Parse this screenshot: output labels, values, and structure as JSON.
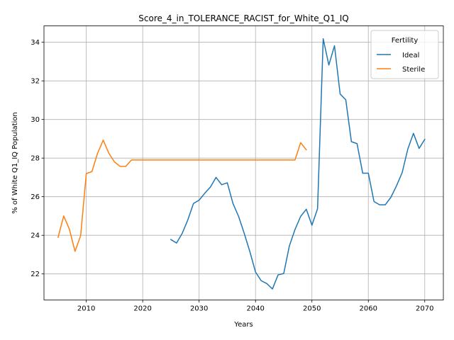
{
  "chart_data": {
    "type": "line",
    "title": "Score_4_in_TOLERANCE_RACIST_for_White_Q1_IQ",
    "xlabel": "Years",
    "ylabel": "% of White Q1_IQ Population",
    "xlim": [
      2002.5,
      2073.3
    ],
    "ylim": [
      20.65,
      34.85
    ],
    "xticks": [
      2010,
      2020,
      2030,
      2040,
      2050,
      2060,
      2070
    ],
    "yticks": [
      22,
      24,
      26,
      28,
      30,
      32,
      34
    ],
    "grid": true,
    "legend": {
      "title": "Fertility",
      "placement": "top-right"
    },
    "series": [
      {
        "name": "Ideal",
        "color": "#1f77b4",
        "x": [
          2025,
          2026,
          2027,
          2028,
          2029,
          2030,
          2031,
          2032,
          2033,
          2034,
          2035,
          2036,
          2037,
          2038,
          2039,
          2040,
          2041,
          2042,
          2043,
          2044,
          2045,
          2046,
          2047,
          2048,
          2049,
          2050,
          2051,
          2052,
          2053,
          2054,
          2055,
          2056,
          2057,
          2058,
          2059,
          2060,
          2061,
          2062,
          2063,
          2064,
          2065,
          2066,
          2067,
          2068,
          2069,
          2070
        ],
        "y": [
          23.78,
          23.6,
          24.1,
          24.8,
          25.65,
          25.82,
          26.18,
          26.5,
          27.0,
          26.62,
          26.72,
          25.65,
          24.98,
          24.1,
          23.15,
          22.1,
          21.65,
          21.5,
          21.22,
          21.95,
          22.02,
          23.45,
          24.3,
          24.98,
          25.35,
          24.52,
          25.38,
          34.18,
          32.82,
          33.82,
          31.32,
          31.02,
          28.85,
          28.75,
          27.22,
          27.22,
          25.75,
          25.58,
          25.58,
          25.97,
          26.57,
          27.25,
          28.47,
          29.28,
          28.5,
          28.97
        ]
      },
      {
        "name": "Sterile",
        "color": "#ff7f0e",
        "x": [
          2005,
          2006,
          2007,
          2008,
          2009,
          2010,
          2011,
          2012,
          2013,
          2014,
          2015,
          2016,
          2017,
          2018,
          2019,
          2020,
          2021,
          2022,
          2023,
          2024,
          2025,
          2026,
          2027,
          2028,
          2029,
          2030,
          2031,
          2032,
          2033,
          2034,
          2035,
          2036,
          2037,
          2038,
          2039,
          2040,
          2041,
          2042,
          2043,
          2044,
          2045,
          2046,
          2047,
          2048,
          2049
        ],
        "y": [
          23.9,
          25.0,
          24.32,
          23.17,
          23.98,
          27.2,
          27.3,
          28.25,
          28.93,
          28.25,
          27.8,
          27.57,
          27.57,
          27.9,
          27.9,
          27.9,
          27.9,
          27.9,
          27.9,
          27.9,
          27.9,
          27.9,
          27.9,
          27.9,
          27.9,
          27.9,
          27.9,
          27.9,
          27.9,
          27.9,
          27.9,
          27.9,
          27.9,
          27.9,
          27.9,
          27.9,
          27.9,
          27.9,
          27.9,
          27.9,
          27.9,
          27.9,
          27.9,
          28.8,
          28.43
        ]
      }
    ]
  }
}
